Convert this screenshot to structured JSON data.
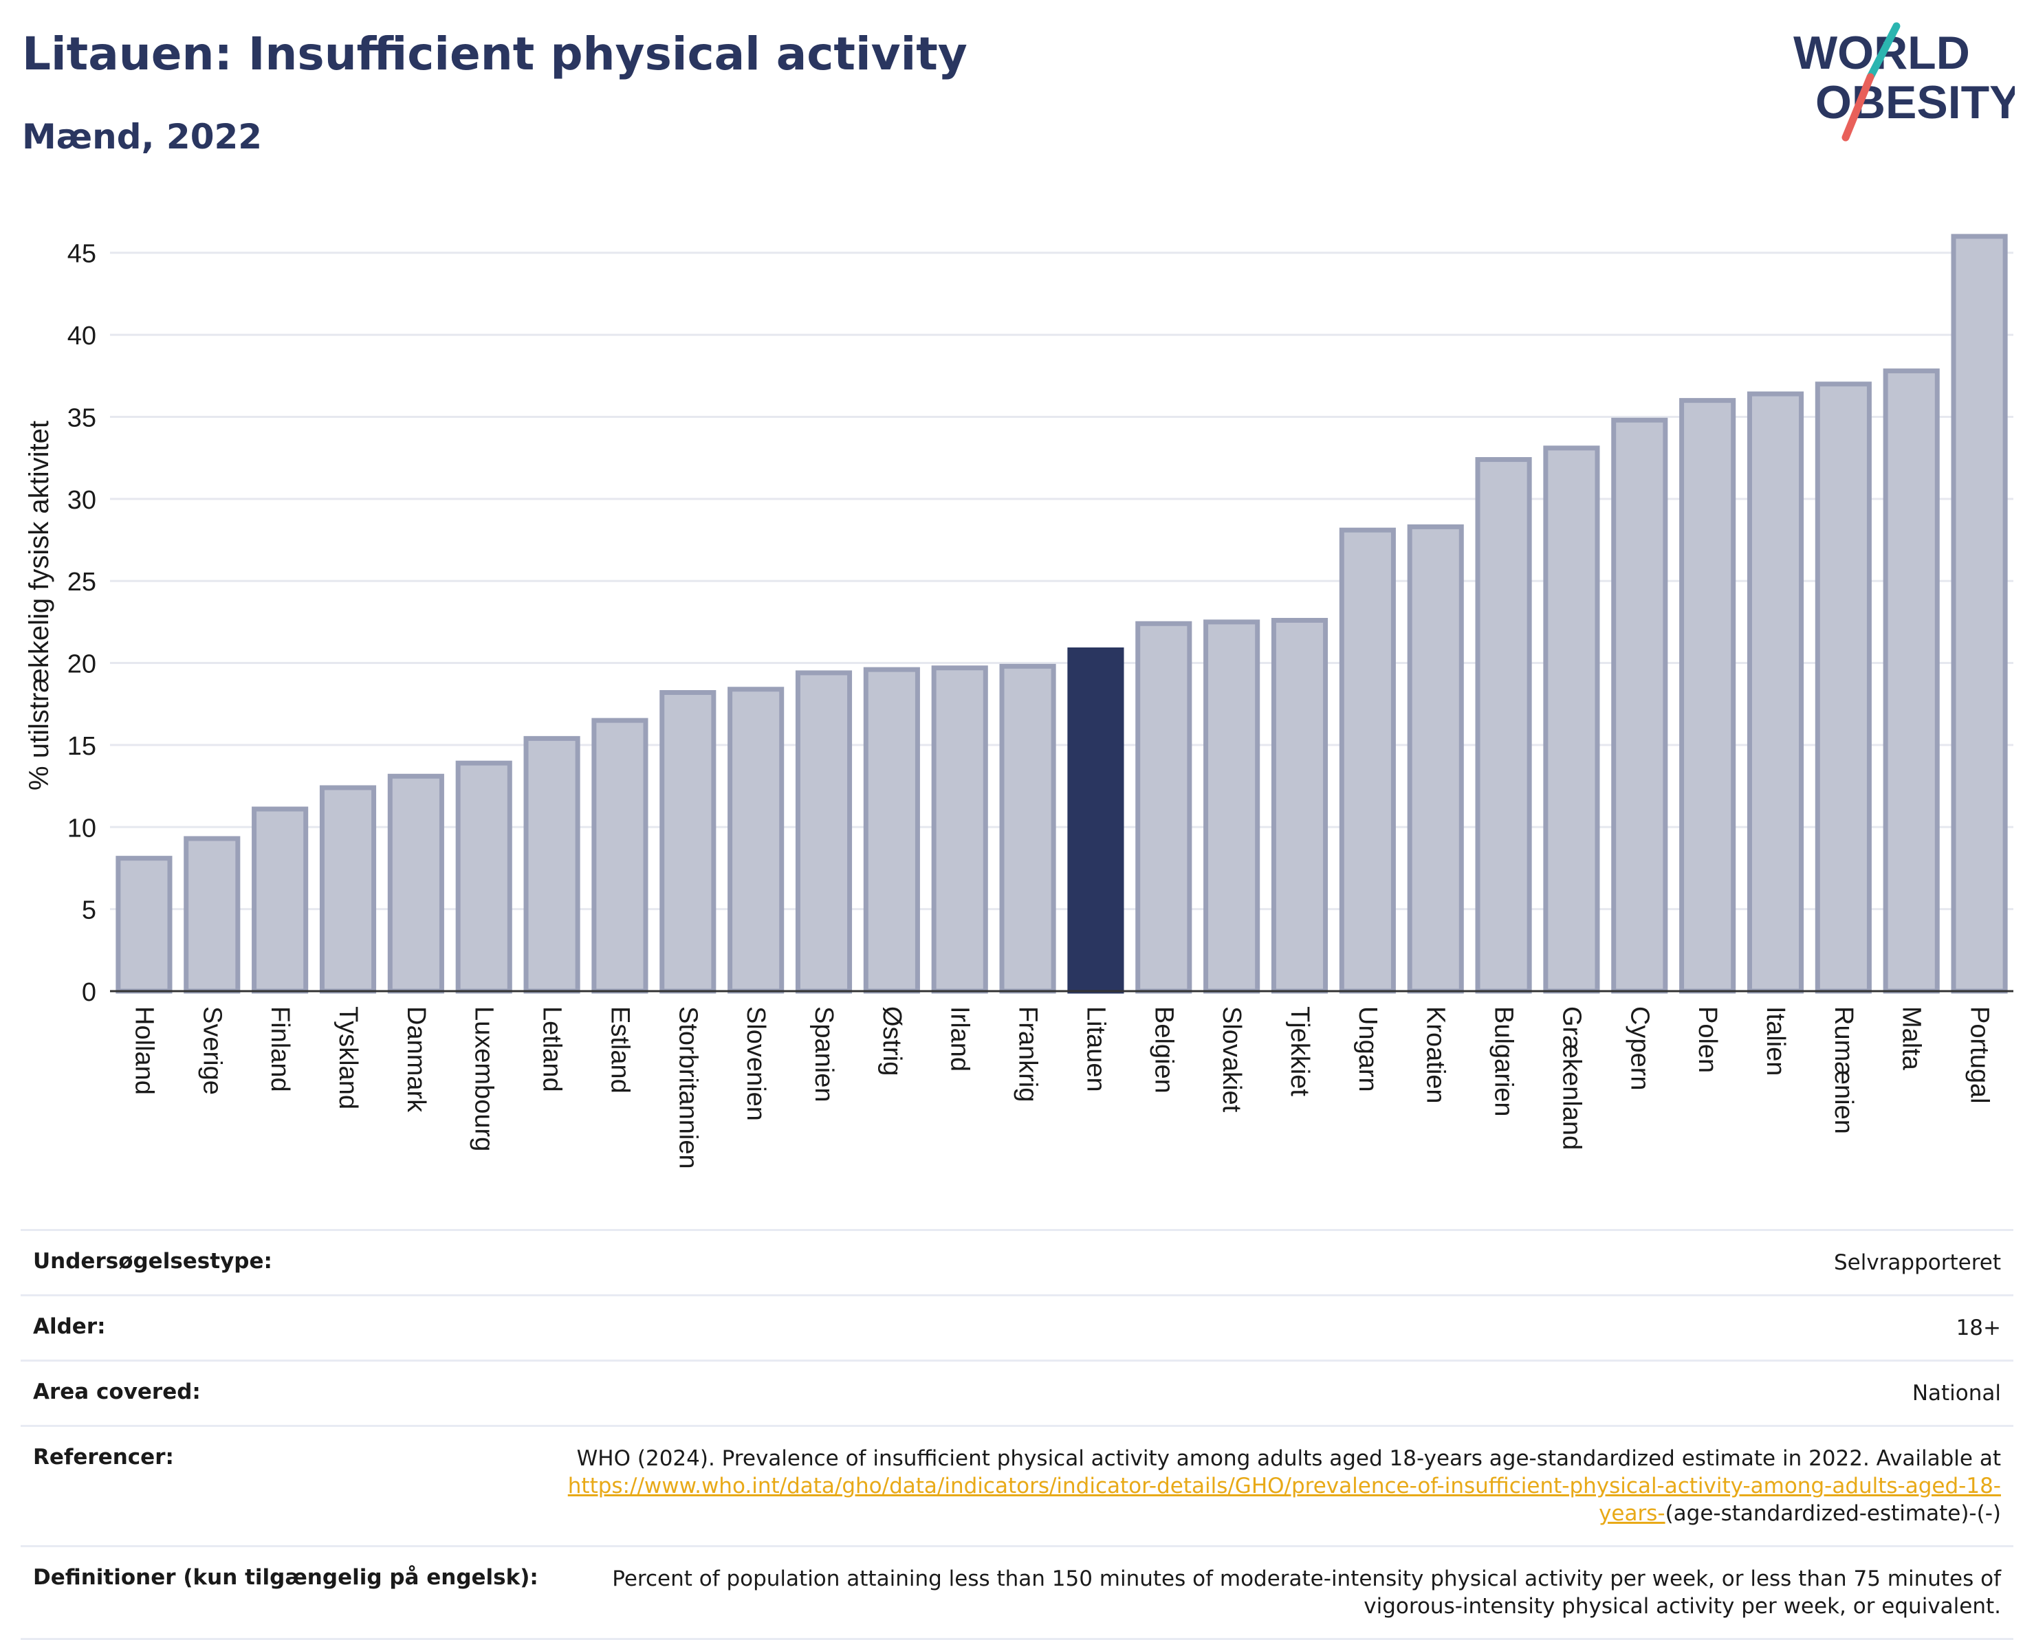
{
  "header": {
    "title": "Litauen: Insufficient physical activity",
    "subtitle": "Mænd, 2022",
    "logo_line1": "WORLD",
    "logo_line2": "OBESITY"
  },
  "colors": {
    "bar": "#c0c4d2",
    "bar_border": "#9aa0b8",
    "highlight": "#2a3660",
    "title": "#2a3660",
    "grid": "#e6e8ef",
    "link": "#e8a917",
    "logo_teal": "#2bb5b0",
    "logo_red": "#e8605a"
  },
  "chart_data": {
    "type": "bar",
    "ylabel": "% utilstrækkelig fysisk aktivitet",
    "ylim": [
      0,
      47
    ],
    "yticks": [
      0,
      5,
      10,
      15,
      20,
      25,
      30,
      35,
      40,
      45
    ],
    "grid": true,
    "highlight": "Litauen",
    "categories": [
      "Holland",
      "Sverige",
      "Finland",
      "Tyskland",
      "Danmark",
      "Luxembourg",
      "Letland",
      "Estland",
      "Storbritannien",
      "Slovenien",
      "Spanien",
      "Østrig",
      "Irland",
      "Frankrig",
      "Litauen",
      "Belgien",
      "Slovakiet",
      "Tjekkiet",
      "Ungarn",
      "Kroatien",
      "Bulgarien",
      "Grækenland",
      "Cypern",
      "Polen",
      "Italien",
      "Rumænien",
      "Malta",
      "Portugal"
    ],
    "values": [
      8.1,
      9.3,
      11.1,
      12.4,
      13.1,
      13.9,
      15.4,
      16.5,
      18.2,
      18.4,
      19.4,
      19.6,
      19.7,
      19.8,
      20.8,
      22.4,
      22.5,
      22.6,
      28.1,
      28.3,
      32.4,
      33.1,
      34.8,
      36.0,
      36.4,
      37.0,
      37.8,
      46.0
    ]
  },
  "info": {
    "rows": [
      {
        "label": "Undersøgelsestype:",
        "value": "Selvrapporteret"
      },
      {
        "label": "Alder:",
        "value": "18+"
      },
      {
        "label": "Area covered:",
        "value": "National"
      }
    ],
    "references_label": "Referencer:",
    "references_text": "WHO (2024). Prevalence of insufficient physical activity among adults aged 18-years age-standardized estimate in 2022. Available at",
    "references_link": "https://www.who.int/data/gho/data/indicators/indicator-details/GHO/prevalence-of-insufficient-physical-activity-among-adults-aged-18-years-",
    "references_suffix": "(age-standardized-estimate)-(-)",
    "definitions_label": "Definitioner (kun tilgængelig på engelsk):",
    "definitions_text": "Percent of population attaining less than 150 minutes of moderate-intensity physical activity per week, or less than 75 minutes of vigorous-intensity physical activity per week, or equivalent."
  }
}
